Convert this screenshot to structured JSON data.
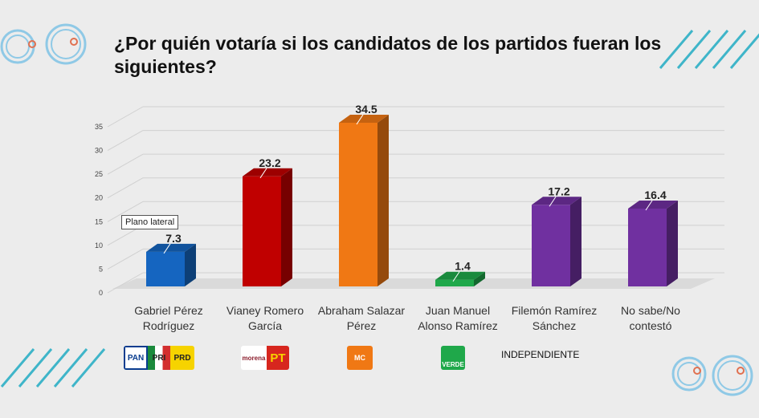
{
  "title": "¿Por quién votaría si los candidatos de los partidos fueran los siguientes?",
  "tooltip": "Plano lateral",
  "colors": {
    "blue": "#1565c0",
    "red": "#c00000",
    "orange": "#f07814",
    "green": "#1fa84a",
    "purple": "#7030a0",
    "accent": "#3fb5c9"
  },
  "party_logos": {
    "g1": [
      "PAN",
      "PRI",
      "PRD"
    ],
    "g2": [
      "morena",
      "PT"
    ],
    "g3": [
      "MC"
    ],
    "g4": [
      "VERDE"
    ],
    "g5": "INDEPENDIENTE"
  },
  "chart_data": {
    "type": "bar",
    "title": "¿Por quién votaría si los candidatos de los partidos fueran los siguientes?",
    "categories": [
      [
        "Gabriel Pérez",
        "Rodríguez"
      ],
      [
        "Vianey Romero",
        "García"
      ],
      [
        "Abraham Salazar",
        "Pérez"
      ],
      [
        "Juan Manuel",
        "Alonso Ramírez"
      ],
      [
        "Filemón Ramírez",
        "Sánchez"
      ],
      [
        "No sabe/No",
        "contestó"
      ]
    ],
    "values": [
      7.3,
      23.2,
      34.5,
      1.4,
      17.2,
      16.4
    ],
    "value_labels": [
      "7.3",
      "23.2",
      "34.5",
      "1.4",
      "17.2",
      "16.4"
    ],
    "bar_colors": [
      "#1565c0",
      "#c00000",
      "#f07814",
      "#1fa84a",
      "#7030a0",
      "#7030a0"
    ],
    "yticks": [
      "0",
      "5",
      "10",
      "15",
      "20",
      "25",
      "30",
      "35"
    ],
    "ylim": [
      0,
      35
    ],
    "xlabel": "",
    "ylabel": "",
    "grid": true,
    "legend": "none"
  }
}
